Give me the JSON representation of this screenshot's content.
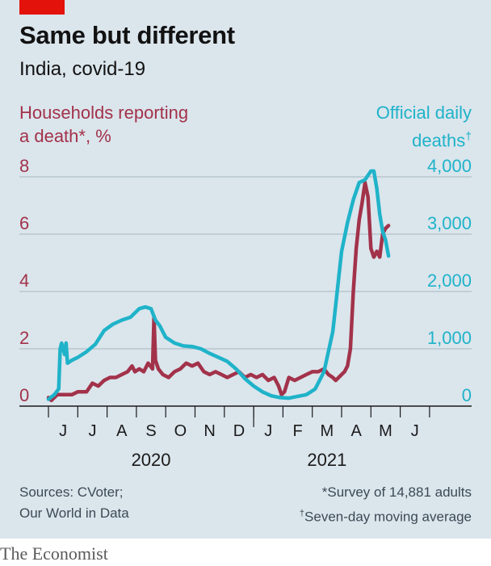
{
  "header": {
    "title": "Same but different",
    "subtitle": "India, covid-19"
  },
  "footer": {
    "sources_line1": "Sources: CVoter;",
    "sources_line2": "Our World in Data",
    "note1": "*Survey of 14,881 adults",
    "note2_mark": "†",
    "note2": "Seven-day moving average",
    "brand": "The Economist"
  },
  "colors": {
    "households": "#a2324a",
    "deaths": "#1fb3c9",
    "background": "#dbe5ec",
    "grid": "#a6b6c1",
    "brand_red": "#e3120b"
  },
  "chart_data": {
    "type": "line",
    "title": "Same but different",
    "subtitle": "India, covid-19",
    "x_labels": [
      "J",
      "J",
      "A",
      "S",
      "O",
      "N",
      "D",
      "J",
      "F",
      "M",
      "A",
      "M",
      "J"
    ],
    "year_labels": [
      "2020",
      "2021"
    ],
    "x_range_months": [
      0,
      12.3
    ],
    "left_axis": {
      "label_line1": "Households reporting",
      "label_line2": "a death*, %",
      "ylim": [
        0,
        8
      ],
      "ticks": [
        "0",
        "2",
        "4",
        "6",
        "8"
      ]
    },
    "right_axis": {
      "label_line1": "Official daily",
      "label_line2": "deaths",
      "label_mark": "†",
      "ylim": [
        0,
        4000
      ],
      "ticks": [
        "0",
        "1,000",
        "2,000",
        "3,000",
        "4,000"
      ]
    },
    "series": [
      {
        "name": "Households reporting a death*, %",
        "axis": "left",
        "x": [
          0,
          0.1,
          0.3,
          0.5,
          0.8,
          1.0,
          1.3,
          1.5,
          1.7,
          1.9,
          2.1,
          2.3,
          2.5,
          2.7,
          2.85,
          2.95,
          3.1,
          3.25,
          3.4,
          3.55,
          3.6,
          3.65,
          3.75,
          3.9,
          4.1,
          4.3,
          4.5,
          4.7,
          4.9,
          5.1,
          5.3,
          5.5,
          5.7,
          5.9,
          6.1,
          6.3,
          6.5,
          6.7,
          6.9,
          7.1,
          7.3,
          7.5,
          7.7,
          7.85,
          7.95,
          8.05,
          8.2,
          8.4,
          8.6,
          8.8,
          9.0,
          9.2,
          9.4,
          9.55,
          9.7,
          9.8,
          9.9,
          10.0,
          10.1,
          10.2,
          10.3,
          10.4,
          10.5,
          10.6,
          10.7,
          10.8,
          10.9,
          11.0,
          11.1,
          11.2,
          11.3,
          11.4,
          11.5,
          11.6
        ],
        "values": [
          0.3,
          0.2,
          0.4,
          0.4,
          0.4,
          0.5,
          0.5,
          0.8,
          0.7,
          0.9,
          1.0,
          1.0,
          1.1,
          1.2,
          1.4,
          1.2,
          1.3,
          1.2,
          1.5,
          1.3,
          3.1,
          1.6,
          1.3,
          1.1,
          1.0,
          1.2,
          1.3,
          1.5,
          1.4,
          1.5,
          1.2,
          1.1,
          1.2,
          1.1,
          1.0,
          1.1,
          1.2,
          1.0,
          1.1,
          1.0,
          1.1,
          0.9,
          1.0,
          0.7,
          0.4,
          0.5,
          1.0,
          0.9,
          1.0,
          1.1,
          1.2,
          1.2,
          1.3,
          1.1,
          1.0,
          0.9,
          1.0,
          1.1,
          1.2,
          1.4,
          2.0,
          4.0,
          5.5,
          6.5,
          7.1,
          7.8,
          7.3,
          5.5,
          5.2,
          5.4,
          5.2,
          6.0,
          6.2,
          6.3
        ]
      },
      {
        "name": "Official daily deaths†",
        "axis": "right",
        "x": [
          0,
          0.2,
          0.35,
          0.4,
          0.45,
          0.55,
          0.6,
          0.65,
          0.8,
          1.0,
          1.3,
          1.6,
          1.9,
          2.2,
          2.5,
          2.8,
          3.1,
          3.3,
          3.5,
          3.65,
          3.8,
          4.0,
          4.3,
          4.6,
          4.9,
          5.2,
          5.5,
          5.8,
          6.1,
          6.4,
          6.7,
          7.0,
          7.3,
          7.6,
          7.9,
          8.2,
          8.5,
          8.8,
          9.1,
          9.4,
          9.7,
          10.0,
          10.2,
          10.4,
          10.6,
          10.8,
          11.0,
          11.1,
          11.2,
          11.3,
          11.4,
          11.5,
          11.6
        ],
        "values": [
          120,
          200,
          300,
          1000,
          1100,
          900,
          1100,
          750,
          800,
          850,
          950,
          1080,
          1320,
          1430,
          1500,
          1550,
          1700,
          1730,
          1700,
          1500,
          1400,
          1200,
          1100,
          1050,
          1040,
          1000,
          920,
          850,
          780,
          650,
          480,
          350,
          250,
          180,
          150,
          140,
          170,
          200,
          300,
          600,
          1300,
          2700,
          3200,
          3600,
          3900,
          3950,
          4100,
          4100,
          3800,
          3350,
          3050,
          2900,
          2620
        ]
      }
    ]
  }
}
